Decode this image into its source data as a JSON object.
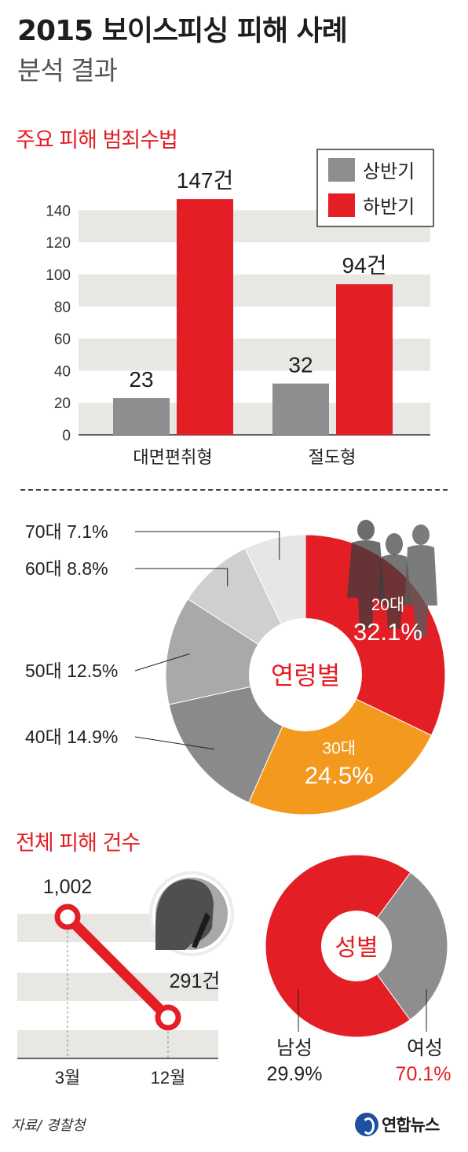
{
  "header": {
    "title": "2015 보이스피싱 피해 사례",
    "subtitle": "분석 결과"
  },
  "sections": {
    "methods": "주요 피해 범죄수법",
    "total": "전체 피해 건수"
  },
  "footer": {
    "source": "자료/ 경찰청",
    "logo": "연합뉴스"
  },
  "colors": {
    "accent": "#e31e24",
    "first_half": "#8e8e90",
    "second_half": "#e31e24",
    "orange": "#f39a1e",
    "band": "#e9e7e3"
  },
  "chart_data": [
    {
      "type": "bar",
      "title": "주요 피해 범죄수법",
      "categories": [
        "대면편취형",
        "절도형"
      ],
      "series": [
        {
          "name": "상반기",
          "values": [
            23,
            32
          ],
          "labels": [
            "23",
            "32"
          ],
          "color": "#8e8e90"
        },
        {
          "name": "하반기",
          "values": [
            147,
            94
          ],
          "labels": [
            "147건",
            "94건"
          ],
          "color": "#e31e24"
        }
      ],
      "yticks": [
        "0",
        "20",
        "40",
        "60",
        "80",
        "100",
        "120",
        "140"
      ],
      "ylim": [
        0,
        150
      ],
      "legend": "top-right"
    },
    {
      "type": "pie",
      "title": "연령별",
      "slices": [
        {
          "label": "20대",
          "value_text": "32.1%",
          "value": 32.1,
          "color": "#e31e24"
        },
        {
          "label": "30대",
          "value_text": "24.5%",
          "value": 24.5,
          "color": "#f39a1e"
        },
        {
          "label": "40대",
          "value_text": "14.9%",
          "value": 14.9,
          "color": "#8a8a8c"
        },
        {
          "label": "50대",
          "value_text": "12.5%",
          "value": 12.5,
          "color": "#a9a9ab"
        },
        {
          "label": "60대",
          "value_text": "8.8%",
          "value": 8.8,
          "color": "#cfcfd0"
        },
        {
          "label": "70대",
          "value_text": "7.1%",
          "value": 7.1,
          "color": "#e6e6e6"
        }
      ]
    },
    {
      "type": "line",
      "title": "전체 피해 건수",
      "x": [
        "3월",
        "12월"
      ],
      "values": [
        1002,
        291
      ],
      "labels": [
        "1,002",
        "291건"
      ],
      "color": "#e31e24"
    },
    {
      "type": "pie",
      "title": "성별",
      "slices": [
        {
          "label": "여성",
          "value_text": "70.1%",
          "value": 70.1,
          "color": "#e31e24"
        },
        {
          "label": "남성",
          "value_text": "29.9%",
          "value": 29.9,
          "color": "#8e8e90"
        }
      ]
    }
  ]
}
